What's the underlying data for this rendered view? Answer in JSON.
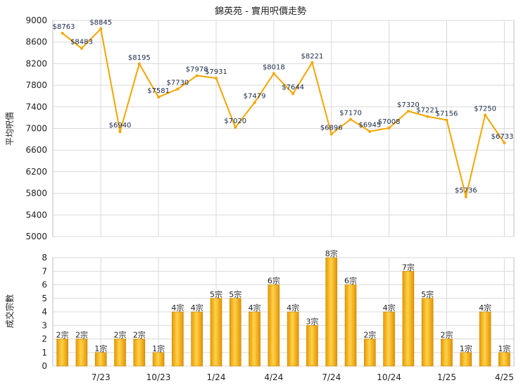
{
  "chart_data": [
    {
      "type": "line",
      "title": "錦英苑 - 實用呎價走勢",
      "ylabel": "平均呎價",
      "ylim": [
        5000,
        9000
      ],
      "yticks": [
        5000,
        5400,
        5800,
        6200,
        6600,
        7000,
        7400,
        7800,
        8200,
        8600,
        9000
      ],
      "grid": true,
      "color": "#f5a500",
      "values": [
        8763,
        8483,
        8845,
        6940,
        8195,
        7581,
        7730,
        7978,
        7931,
        7020,
        7479,
        8018,
        7644,
        8221,
        6896,
        7170,
        6945,
        7008,
        7320,
        7221,
        7156,
        5736,
        7250,
        6733
      ],
      "labels": [
        "$8763",
        "$8483",
        "$8845",
        "$6940",
        "$8195",
        "$7581",
        "$7730",
        "$7978",
        "$7931",
        "$7020",
        "$7479",
        "$8018",
        "$7644",
        "$8221",
        "$6896",
        "$7170",
        "$6945",
        "$7008",
        "$7320",
        "$7221",
        "$7156",
        "$5736",
        "$7250",
        "$6733"
      ]
    },
    {
      "type": "bar",
      "ylabel": "成交宗數",
      "ylim": [
        0,
        8
      ],
      "yticks": [
        0,
        1,
        2,
        3,
        4,
        5,
        6,
        7,
        8
      ],
      "grid": true,
      "color": "#f5b21a",
      "values": [
        2,
        2,
        1,
        2,
        2,
        1,
        4,
        4,
        5,
        5,
        4,
        6,
        4,
        3,
        8,
        6,
        2,
        4,
        7,
        5,
        2,
        1,
        4,
        1
      ],
      "labels": [
        "2宗",
        "2宗",
        "1宗",
        "2宗",
        "2宗",
        "1宗",
        "4宗",
        "4宗",
        "5宗",
        "5宗",
        "4宗",
        "6宗",
        "4宗",
        "3宗",
        "8宗",
        "6宗",
        "2宗",
        "4宗",
        "7宗",
        "5宗",
        "2宗",
        "1宗",
        "4宗",
        "1宗"
      ],
      "categories": [
        "7/23",
        "10/23",
        "1/24",
        "4/24",
        "7/24",
        "10/24",
        "1/25",
        "4/25"
      ]
    }
  ]
}
